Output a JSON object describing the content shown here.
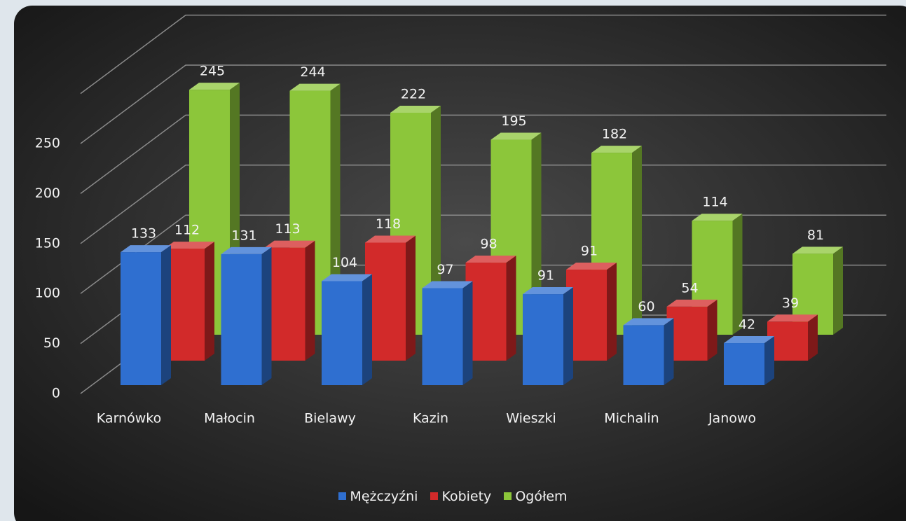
{
  "chart_data": {
    "type": "bar3d",
    "categories": [
      "Karnówko",
      "Małocin",
      "Bielawy",
      "Kazin",
      "Wieszki",
      "Michalin",
      "Janowo"
    ],
    "series": [
      {
        "name": "Mężczyźni",
        "color": "#2f6fd0",
        "values": [
          133,
          131,
          104,
          97,
          91,
          60,
          42
        ]
      },
      {
        "name": "Kobiety",
        "color": "#d22a2a",
        "values": [
          112,
          113,
          118,
          98,
          91,
          54,
          39
        ]
      },
      {
        "name": "Ogółem",
        "color": "#8cc63a",
        "values": [
          245,
          244,
          222,
          195,
          182,
          114,
          81
        ]
      }
    ],
    "ylim": [
      0,
      300
    ],
    "yticks": [
      0,
      50,
      100,
      150,
      200,
      250
    ],
    "grid": true,
    "legend": "bottom"
  }
}
